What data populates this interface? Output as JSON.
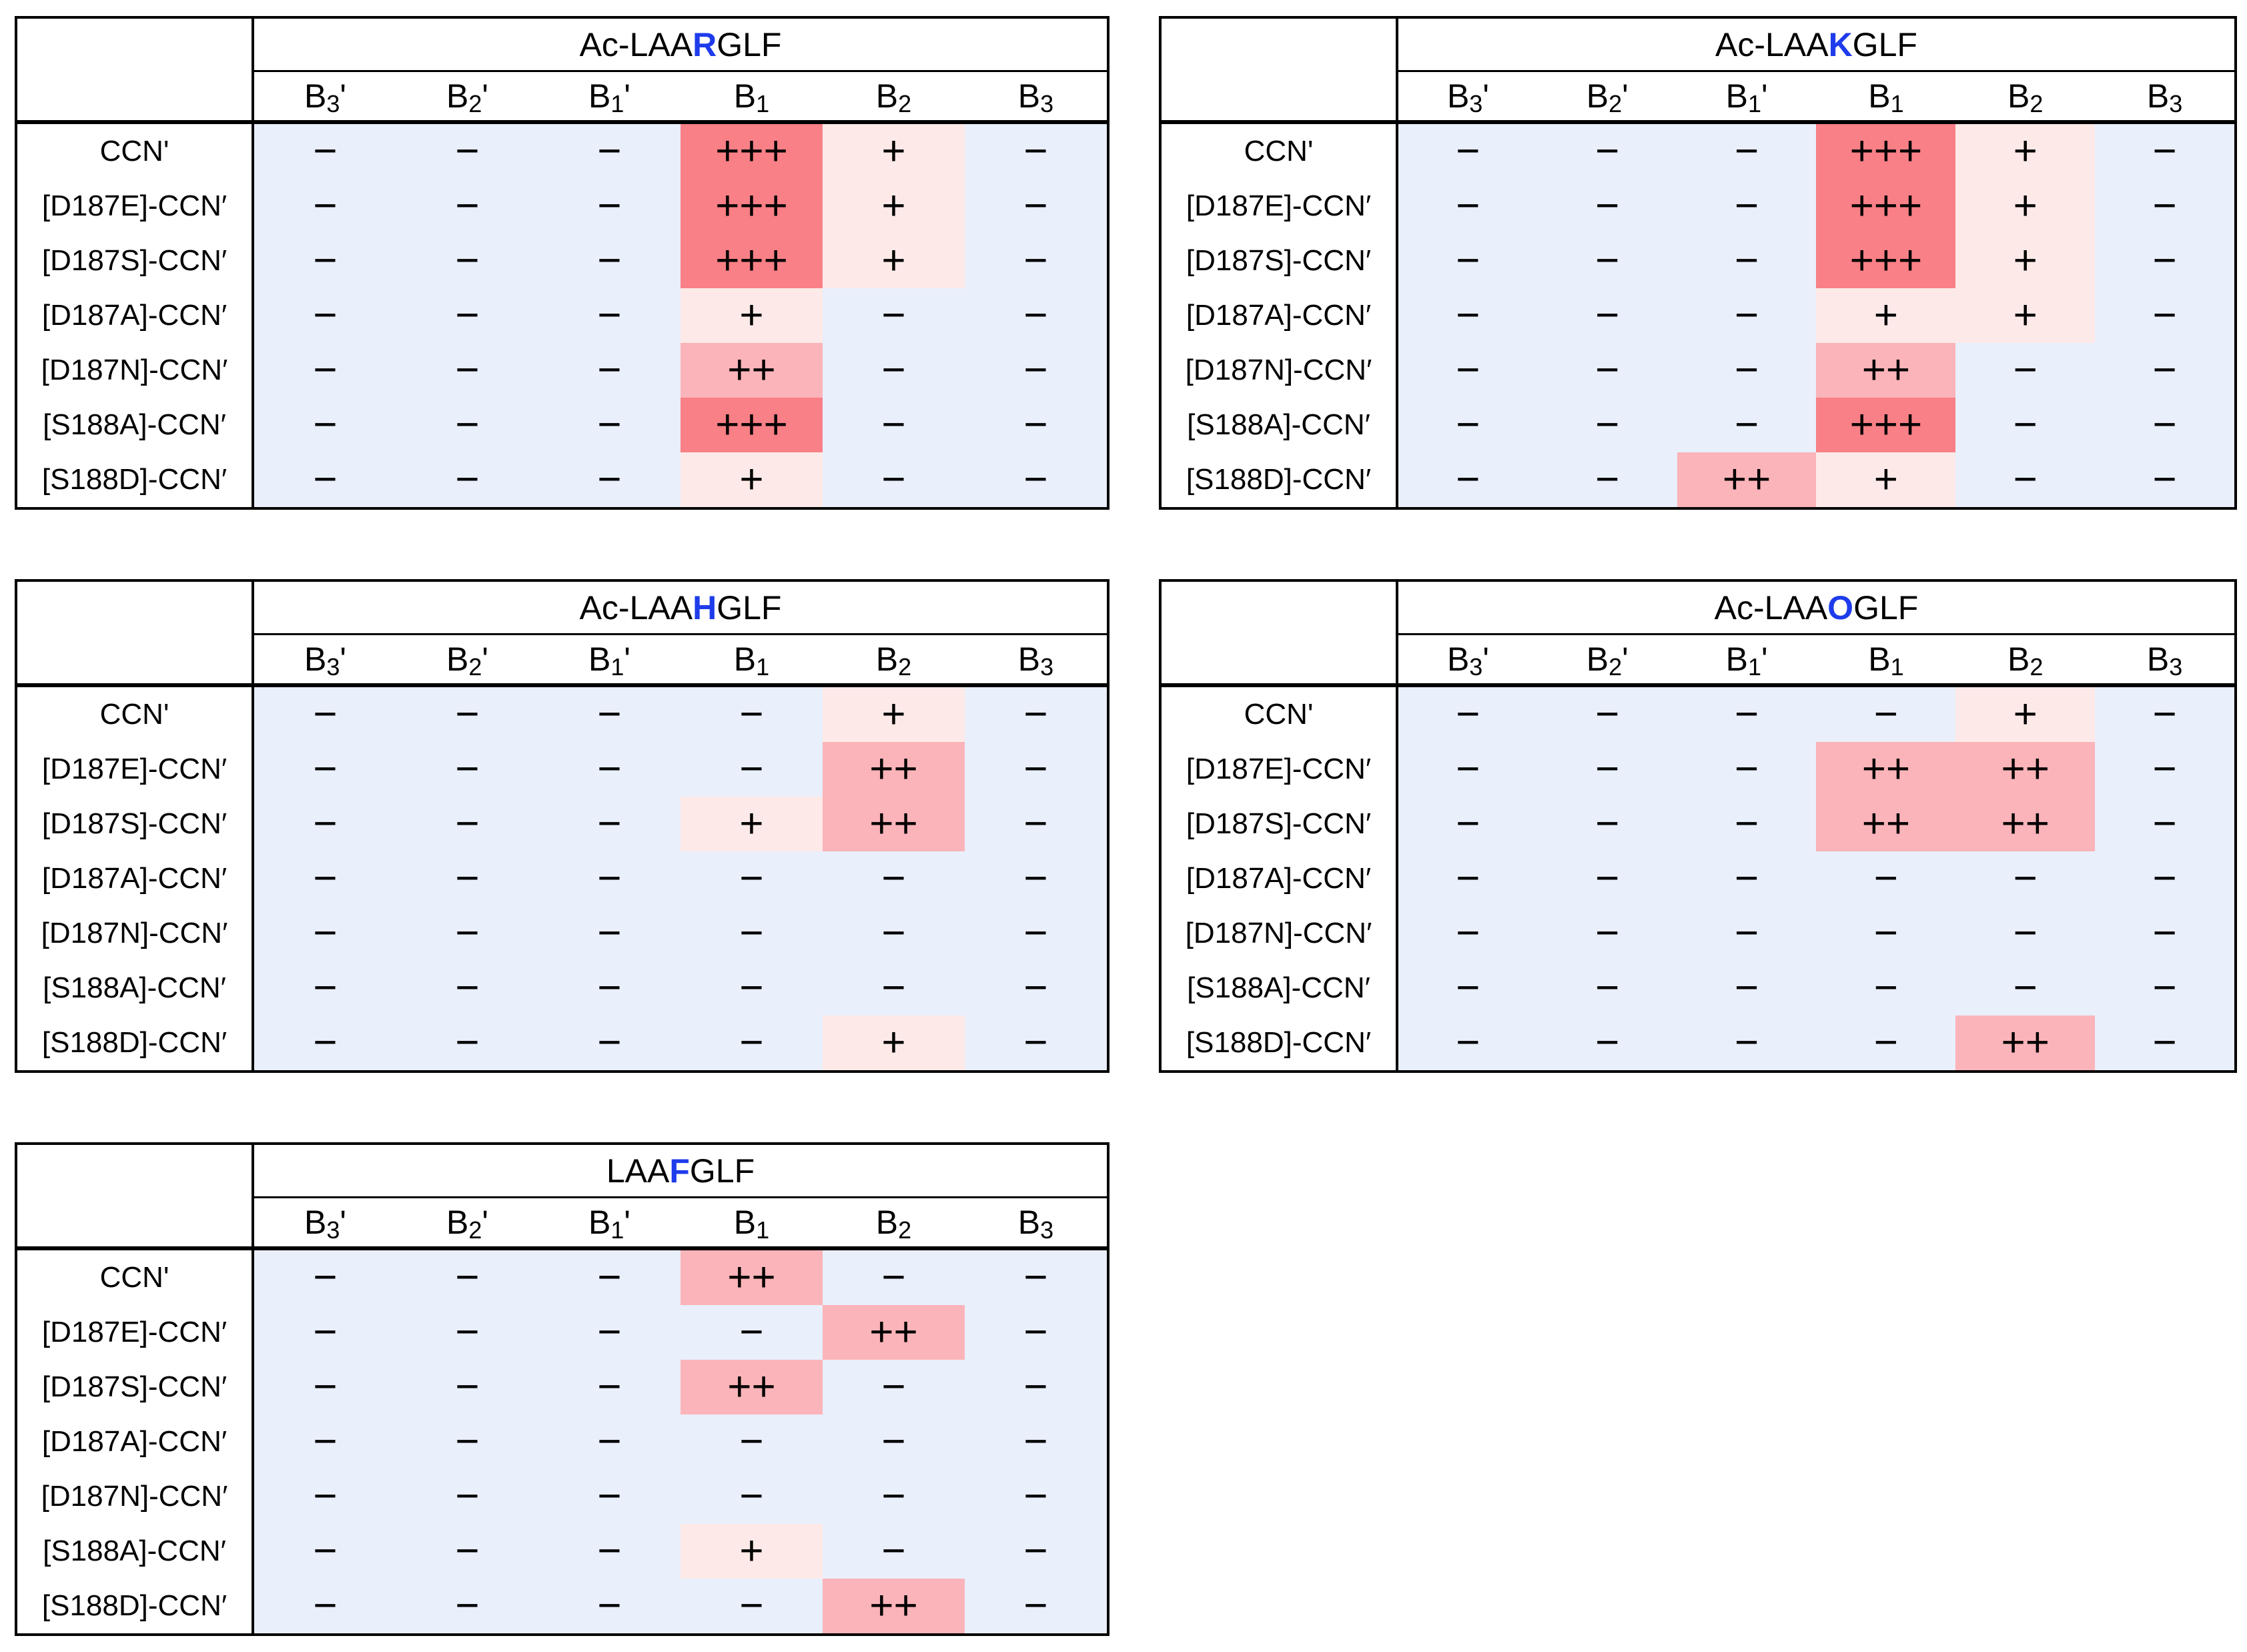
{
  "figure": {
    "description_visible_text_only": true
  },
  "colors": {
    "negative_bg": "#e9effb",
    "plus1_bg": "#fdeae8",
    "plus2_bg": "#fbb4b9",
    "plus3_bg": "#f88086",
    "highlight_letter": "#1e3ceb",
    "border": "#000000",
    "text": "#000000",
    "table_bg": "#ffffff"
  },
  "column_parts": [
    {
      "base": "B",
      "sub": "3",
      "prime": "'"
    },
    {
      "base": "B",
      "sub": "2",
      "prime": "'"
    },
    {
      "base": "B",
      "sub": "1",
      "prime": "'"
    },
    {
      "base": "B",
      "sub": "1",
      "prime": ""
    },
    {
      "base": "B",
      "sub": "2",
      "prime": ""
    },
    {
      "base": "B",
      "sub": "3",
      "prime": ""
    }
  ],
  "chart_data": [
    {
      "type": "heatmap",
      "title": "Ac-LAARGLF",
      "title_parts": {
        "pre": "Ac-LAA",
        "highlight": "R",
        "post": "GLF"
      },
      "columns": [
        "B3'",
        "B2'",
        "B1'",
        "B1",
        "B2",
        "B3"
      ],
      "rows": [
        "CCN'",
        "[D187E]-CCN′",
        "[D187S]-CCN′",
        "[D187A]-CCN′",
        "[D187N]-CCN′",
        "[S188A]-CCN′",
        "[S188D]-CCN′"
      ],
      "values": [
        [
          "−",
          "−",
          "−",
          "+++",
          "+",
          "−"
        ],
        [
          "−",
          "−",
          "−",
          "+++",
          "+",
          "−"
        ],
        [
          "−",
          "−",
          "−",
          "+++",
          "+",
          "−"
        ],
        [
          "−",
          "−",
          "−",
          "+",
          "−",
          "−"
        ],
        [
          "−",
          "−",
          "−",
          "++",
          "−",
          "−"
        ],
        [
          "−",
          "−",
          "−",
          "+++",
          "−",
          "−"
        ],
        [
          "−",
          "−",
          "−",
          "+",
          "−",
          "−"
        ]
      ]
    },
    {
      "type": "heatmap",
      "title": "Ac-LAAKGLF",
      "title_parts": {
        "pre": "Ac-LAA",
        "highlight": "K",
        "post": "GLF"
      },
      "columns": [
        "B3'",
        "B2'",
        "B1'",
        "B1",
        "B2",
        "B3"
      ],
      "rows": [
        "CCN'",
        "[D187E]-CCN′",
        "[D187S]-CCN′",
        "[D187A]-CCN′",
        "[D187N]-CCN′",
        "[S188A]-CCN′",
        "[S188D]-CCN′"
      ],
      "values": [
        [
          "−",
          "−",
          "−",
          "+++",
          "+",
          "−"
        ],
        [
          "−",
          "−",
          "−",
          "+++",
          "+",
          "−"
        ],
        [
          "−",
          "−",
          "−",
          "+++",
          "+",
          "−"
        ],
        [
          "−",
          "−",
          "−",
          "+",
          "+",
          "−"
        ],
        [
          "−",
          "−",
          "−",
          "++",
          "−",
          "−"
        ],
        [
          "−",
          "−",
          "−",
          "+++",
          "−",
          "−"
        ],
        [
          "−",
          "−",
          "++",
          "+",
          "−",
          "−"
        ]
      ]
    },
    {
      "type": "heatmap",
      "title": "Ac-LAAHGLF",
      "title_parts": {
        "pre": "Ac-LAA",
        "highlight": "H",
        "post": "GLF"
      },
      "columns": [
        "B3'",
        "B2'",
        "B1'",
        "B1",
        "B2",
        "B3"
      ],
      "rows": [
        "CCN'",
        "[D187E]-CCN′",
        "[D187S]-CCN′",
        "[D187A]-CCN′",
        "[D187N]-CCN′",
        "[S188A]-CCN′",
        "[S188D]-CCN′"
      ],
      "values": [
        [
          "−",
          "−",
          "−",
          "−",
          "+",
          "−"
        ],
        [
          "−",
          "−",
          "−",
          "−",
          "++",
          "−"
        ],
        [
          "−",
          "−",
          "−",
          "+",
          "++",
          "−"
        ],
        [
          "−",
          "−",
          "−",
          "−",
          "−",
          "−"
        ],
        [
          "−",
          "−",
          "−",
          "−",
          "−",
          "−"
        ],
        [
          "−",
          "−",
          "−",
          "−",
          "−",
          "−"
        ],
        [
          "−",
          "−",
          "−",
          "−",
          "+",
          "−"
        ]
      ]
    },
    {
      "type": "heatmap",
      "title": "Ac-LAAOGLF",
      "title_parts": {
        "pre": "Ac-LAA",
        "highlight": "O",
        "post": "GLF"
      },
      "columns": [
        "B3'",
        "B2'",
        "B1'",
        "B1",
        "B2",
        "B3"
      ],
      "rows": [
        "CCN'",
        "[D187E]-CCN′",
        "[D187S]-CCN′",
        "[D187A]-CCN′",
        "[D187N]-CCN′",
        "[S188A]-CCN′",
        "[S188D]-CCN′"
      ],
      "values": [
        [
          "−",
          "−",
          "−",
          "−",
          "+",
          "−"
        ],
        [
          "−",
          "−",
          "−",
          "++",
          "++",
          "−"
        ],
        [
          "−",
          "−",
          "−",
          "++",
          "++",
          "−"
        ],
        [
          "−",
          "−",
          "−",
          "−",
          "−",
          "−"
        ],
        [
          "−",
          "−",
          "−",
          "−",
          "−",
          "−"
        ],
        [
          "−",
          "−",
          "−",
          "−",
          "−",
          "−"
        ],
        [
          "−",
          "−",
          "−",
          "−",
          "++",
          "−"
        ]
      ]
    },
    {
      "type": "heatmap",
      "title": "LAAFGLF",
      "title_parts": {
        "pre": "LAA",
        "highlight": "F",
        "post": "GLF"
      },
      "columns": [
        "B3'",
        "B2'",
        "B1'",
        "B1",
        "B2",
        "B3"
      ],
      "rows": [
        "CCN'",
        "[D187E]-CCN′",
        "[D187S]-CCN′",
        "[D187A]-CCN′",
        "[D187N]-CCN′",
        "[S188A]-CCN′",
        "[S188D]-CCN′"
      ],
      "values": [
        [
          "−",
          "−",
          "−",
          "++",
          "−",
          "−"
        ],
        [
          "−",
          "−",
          "−",
          "−",
          "++",
          "−"
        ],
        [
          "−",
          "−",
          "−",
          "++",
          "−",
          "−"
        ],
        [
          "−",
          "−",
          "−",
          "−",
          "−",
          "−"
        ],
        [
          "−",
          "−",
          "−",
          "−",
          "−",
          "−"
        ],
        [
          "−",
          "−",
          "−",
          "+",
          "−",
          "−"
        ],
        [
          "−",
          "−",
          "−",
          "−",
          "++",
          "−"
        ]
      ]
    }
  ]
}
